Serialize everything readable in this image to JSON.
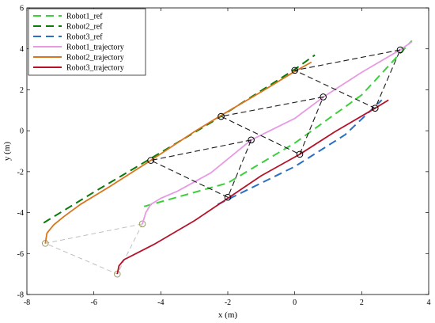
{
  "chart_data": {
    "type": "line",
    "title": "",
    "xlabel": "x (m)",
    "ylabel": "y (m)",
    "xlim": [
      -8,
      4
    ],
    "ylim": [
      -8,
      6
    ],
    "xticks": [
      -8,
      -6,
      -4,
      -2,
      0,
      2,
      4
    ],
    "yticks": [
      -8,
      -6,
      -4,
      -2,
      0,
      2,
      4,
      6
    ],
    "grid": false,
    "legend_position": "top-left",
    "series": [
      {
        "name": "Robot1_ref",
        "style": "dashed",
        "color": "#3ccf3c",
        "x": [
          -4.5,
          -2.0,
          0.0,
          2.0,
          3.5
        ],
        "y": [
          -3.7,
          -2.55,
          -0.6,
          1.75,
          4.4
        ]
      },
      {
        "name": "Robot2_ref",
        "style": "dashed",
        "color": "#0a7a0a",
        "x": [
          -7.5,
          -6.0,
          -4.5,
          -2.5,
          0.0,
          0.6
        ],
        "y": [
          -4.5,
          -3.0,
          -1.55,
          0.4,
          3.0,
          3.7
        ]
      },
      {
        "name": "Robot3_ref",
        "style": "dashed",
        "color": "#2b6fc2",
        "x": [
          -2.3,
          0.0,
          1.5,
          2.6
        ],
        "y": [
          -3.6,
          -1.75,
          -0.2,
          1.5
        ]
      },
      {
        "name": "Robot1_trajectory",
        "style": "solid",
        "color": "#e79ae3",
        "x": [
          -4.55,
          -4.45,
          -4.3,
          -4.0,
          -3.5,
          -2.5,
          -1.3,
          0.0,
          0.9,
          2.0,
          3.2,
          3.5
        ],
        "y": [
          -4.55,
          -4.0,
          -3.6,
          -3.3,
          -2.95,
          -2.05,
          -0.45,
          0.6,
          1.7,
          2.85,
          4.0,
          4.35
        ]
      },
      {
        "name": "Robot2_trajectory",
        "style": "solid",
        "color": "#d9751d",
        "x": [
          -7.45,
          -7.4,
          -7.2,
          -6.9,
          -6.4,
          -5.5,
          -4.3,
          -3.0,
          -2.2,
          -1.0,
          0.0,
          0.5
        ],
        "y": [
          -5.5,
          -5.0,
          -4.6,
          -4.2,
          -3.6,
          -2.7,
          -1.45,
          -0.05,
          0.75,
          1.9,
          2.9,
          3.35
        ]
      },
      {
        "name": "Robot3_trajectory",
        "style": "solid",
        "color": "#b5122a",
        "x": [
          -5.3,
          -5.25,
          -5.1,
          -4.8,
          -4.2,
          -3.0,
          -2.0,
          -1.0,
          0.15,
          1.2,
          2.4,
          2.8
        ],
        "y": [
          -7.0,
          -6.6,
          -6.3,
          -6.05,
          -5.55,
          -4.4,
          -3.3,
          -2.2,
          -1.15,
          -0.05,
          1.1,
          1.5
        ]
      }
    ],
    "formation_snapshots": {
      "color_light": "#bfbfbf",
      "color_dark": "#1a1a1a",
      "light": [
        {
          "points": [
            [
              -4.55,
              -4.55
            ],
            [
              -7.45,
              -5.5
            ],
            [
              -5.3,
              -7.0
            ]
          ]
        }
      ],
      "dark": [
        {
          "points": [
            [
              -1.3,
              -0.45
            ],
            [
              -4.3,
              -1.45
            ],
            [
              -2.0,
              -3.25
            ]
          ]
        },
        {
          "points": [
            [
              0.85,
              1.65
            ],
            [
              -2.2,
              0.7
            ],
            [
              0.15,
              -1.15
            ]
          ]
        },
        {
          "points": [
            [
              3.15,
              3.95
            ],
            [
              0.0,
              2.95
            ],
            [
              2.4,
              1.1
            ]
          ]
        }
      ]
    }
  }
}
